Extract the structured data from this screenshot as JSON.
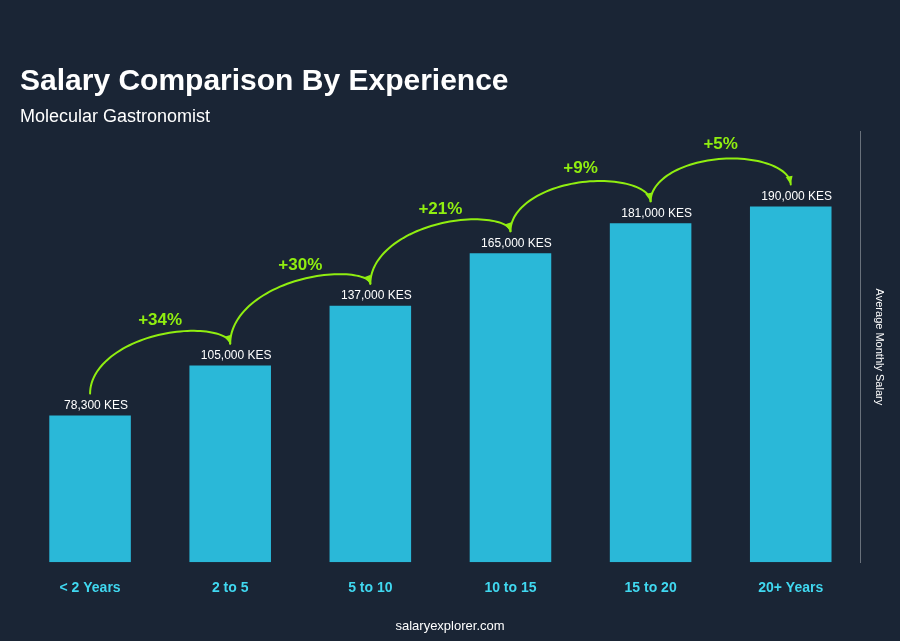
{
  "chart_data": {
    "type": "bar",
    "title": "Salary Comparison By Experience",
    "subtitle": "Molecular Gastronomist",
    "ylabel": "Average Monthly Salary",
    "categories": [
      "< 2 Years",
      "2 to 5",
      "5 to 10",
      "10 to 15",
      "15 to 20",
      "20+ Years"
    ],
    "values": [
      78300,
      105000,
      137000,
      165000,
      181000,
      190000
    ],
    "value_labels": [
      "78,300 KES",
      "105,000 KES",
      "137,000 KES",
      "165,000 KES",
      "181,000 KES",
      "190,000 KES"
    ],
    "data_labels": true,
    "annotations": [
      "+34%",
      "+30%",
      "+21%",
      "+9%",
      "+5%"
    ],
    "watermark": "salaryexplorer.com",
    "color": "#2ab8d8",
    "ylim": [
      0,
      230000
    ],
    "grid": false,
    "tick_labels": "x"
  }
}
